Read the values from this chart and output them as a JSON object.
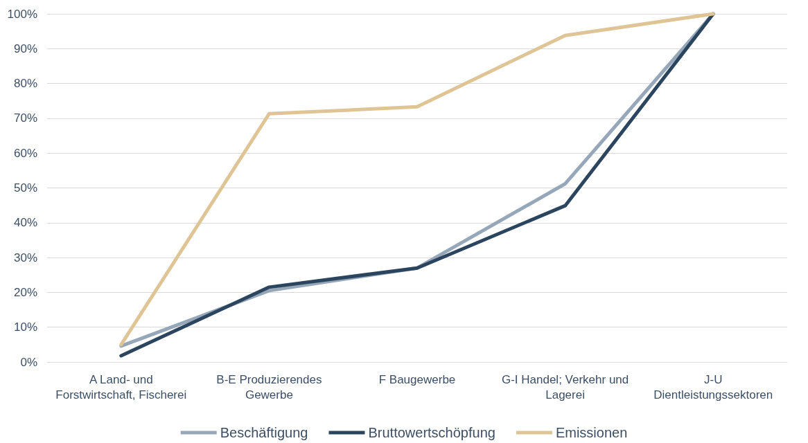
{
  "chart_data": {
    "type": "line",
    "categories": [
      "A Land- und\nForstwirtschaft, Fischerei",
      "B-E Produzierendes\nGewerbe",
      "F Baugewerbe",
      "G-I Handel; Verkehr und\nLagerei",
      "J-U\nDientleistungssektoren"
    ],
    "series": [
      {
        "name": "Beschäftigung",
        "color": "#95a7b9",
        "values": [
          4.6,
          20.5,
          27,
          51.2,
          100
        ]
      },
      {
        "name": "Bruttowertschöpfung",
        "color": "#2b455e",
        "values": [
          1.8,
          21.5,
          27,
          44.9,
          100
        ]
      },
      {
        "name": "Emissionen",
        "color": "#dfc596",
        "values": [
          5,
          71.3,
          73.3,
          93.8,
          100
        ]
      }
    ],
    "ylim": [
      0,
      100
    ],
    "yticks": [
      {
        "value": 0,
        "label": "0%"
      },
      {
        "value": 10,
        "label": "10%"
      },
      {
        "value": 20,
        "label": "20%"
      },
      {
        "value": 30,
        "label": "30%"
      },
      {
        "value": 40,
        "label": "40%"
      },
      {
        "value": 50,
        "label": "50%"
      },
      {
        "value": 60,
        "label": "60%"
      },
      {
        "value": 70,
        "label": "70%"
      },
      {
        "value": 80,
        "label": "80%"
      },
      {
        "value": 90,
        "label": "90%"
      },
      {
        "value": 100,
        "label": "100%"
      }
    ],
    "grid": "y",
    "legend": "bottom",
    "marker": "none",
    "line_style": "solid"
  }
}
